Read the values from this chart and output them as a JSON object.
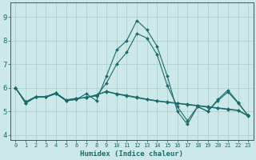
{
  "title": "",
  "xlabel": "Humidex (Indice chaleur)",
  "xlim": [
    -0.5,
    23.5
  ],
  "ylim": [
    3.8,
    9.6
  ],
  "yticks": [
    4,
    5,
    6,
    7,
    8,
    9
  ],
  "xtick_labels": [
    "0",
    "1",
    "2",
    "3",
    "4",
    "5",
    "6",
    "7",
    "8",
    "9",
    "10",
    "11",
    "12",
    "13",
    "14",
    "15",
    "16",
    "17",
    "18",
    "19",
    "20",
    "21",
    "22",
    "23"
  ],
  "background_color": "#cde8e8",
  "grid_color": "#b0d0d0",
  "line_color": "#1a6b6b",
  "lines": [
    [
      6.0,
      5.35,
      5.6,
      5.6,
      5.75,
      5.45,
      5.5,
      5.75,
      5.45,
      6.5,
      7.6,
      8.0,
      8.85,
      8.45,
      7.75,
      6.5,
      5.0,
      4.45,
      5.2,
      5.0,
      5.5,
      5.9,
      5.38,
      4.82
    ],
    [
      6.0,
      5.35,
      5.6,
      5.6,
      5.75,
      5.45,
      5.52,
      5.6,
      5.65,
      6.2,
      7.0,
      7.5,
      8.3,
      8.1,
      7.4,
      6.1,
      5.2,
      4.6,
      5.2,
      5.0,
      5.45,
      5.82,
      5.35,
      4.82
    ],
    [
      6.0,
      5.4,
      5.62,
      5.62,
      5.78,
      5.48,
      5.55,
      5.58,
      5.7,
      5.85,
      5.75,
      5.68,
      5.6,
      5.52,
      5.45,
      5.4,
      5.35,
      5.3,
      5.25,
      5.2,
      5.15,
      5.1,
      5.05,
      4.82
    ],
    [
      6.0,
      5.4,
      5.62,
      5.62,
      5.78,
      5.48,
      5.55,
      5.58,
      5.7,
      5.83,
      5.73,
      5.65,
      5.57,
      5.5,
      5.43,
      5.38,
      5.33,
      5.28,
      5.23,
      5.18,
      5.13,
      5.08,
      5.03,
      4.8
    ]
  ]
}
